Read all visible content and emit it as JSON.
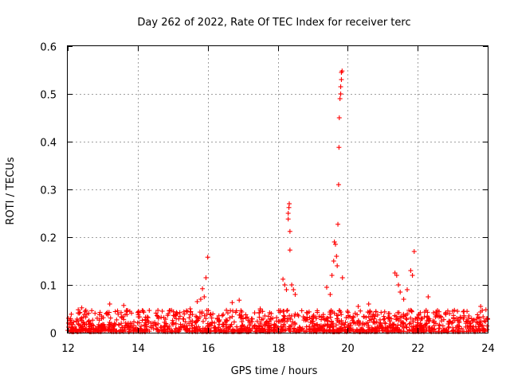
{
  "chart_data": {
    "type": "scatter",
    "title": "Day 262 of 2022, Rate Of TEC Index for receiver terc",
    "xlabel": "GPS time / hours",
    "ylabel": "ROTI / TECUs",
    "xlim": [
      12,
      24
    ],
    "ylim": [
      0,
      0.6
    ],
    "xticks": [
      12,
      14,
      16,
      18,
      20,
      22,
      24
    ],
    "yticks": [
      0,
      0.1,
      0.2,
      0.3,
      0.4,
      0.5,
      0.6
    ],
    "xtick_labels": [
      "12",
      "14",
      "16",
      "18",
      "20",
      "22",
      "24"
    ],
    "ytick_labels": [
      "0",
      "0.1",
      "0.2",
      "0.3",
      "0.4",
      "0.5",
      "0.6"
    ],
    "grid": true,
    "marker": "+",
    "color": "#ff0000",
    "background_band": {
      "y_min": 0.0,
      "y_max": 0.05,
      "note": "dense noise floor of ROTI samples across whole interval"
    },
    "series": [
      {
        "name": "",
        "points": [
          [
            12.3,
            0.048
          ],
          [
            12.4,
            0.052
          ],
          [
            13.2,
            0.06
          ],
          [
            13.6,
            0.057
          ],
          [
            14.0,
            0.042
          ],
          [
            14.7,
            0.045
          ],
          [
            15.5,
            0.05
          ],
          [
            15.7,
            0.065
          ],
          [
            15.8,
            0.07
          ],
          [
            15.85,
            0.092
          ],
          [
            15.9,
            0.075
          ],
          [
            15.95,
            0.115
          ],
          [
            16.0,
            0.158
          ],
          [
            16.7,
            0.063
          ],
          [
            16.9,
            0.068
          ],
          [
            17.5,
            0.05
          ],
          [
            18.15,
            0.112
          ],
          [
            18.2,
            0.1
          ],
          [
            18.25,
            0.09
          ],
          [
            18.3,
            0.238
          ],
          [
            18.3,
            0.25
          ],
          [
            18.32,
            0.262
          ],
          [
            18.33,
            0.27
          ],
          [
            18.35,
            0.212
          ],
          [
            18.35,
            0.173
          ],
          [
            18.4,
            0.1
          ],
          [
            18.45,
            0.09
          ],
          [
            18.5,
            0.08
          ],
          [
            19.4,
            0.095
          ],
          [
            19.5,
            0.08
          ],
          [
            19.55,
            0.12
          ],
          [
            19.6,
            0.15
          ],
          [
            19.62,
            0.19
          ],
          [
            19.65,
            0.185
          ],
          [
            19.68,
            0.16
          ],
          [
            19.7,
            0.14
          ],
          [
            19.72,
            0.227
          ],
          [
            19.74,
            0.31
          ],
          [
            19.75,
            0.388
          ],
          [
            19.76,
            0.45
          ],
          [
            19.78,
            0.49
          ],
          [
            19.8,
            0.5
          ],
          [
            19.8,
            0.515
          ],
          [
            19.82,
            0.53
          ],
          [
            19.82,
            0.545
          ],
          [
            19.84,
            0.548
          ],
          [
            19.85,
            0.115
          ],
          [
            20.3,
            0.055
          ],
          [
            20.6,
            0.06
          ],
          [
            21.35,
            0.125
          ],
          [
            21.4,
            0.12
          ],
          [
            21.45,
            0.1
          ],
          [
            21.5,
            0.085
          ],
          [
            21.6,
            0.07
          ],
          [
            21.7,
            0.09
          ],
          [
            21.8,
            0.13
          ],
          [
            21.85,
            0.12
          ],
          [
            21.9,
            0.17
          ],
          [
            22.3,
            0.075
          ],
          [
            23.0,
            0.045
          ],
          [
            23.8,
            0.055
          ],
          [
            23.95,
            0.048
          ]
        ]
      }
    ]
  }
}
